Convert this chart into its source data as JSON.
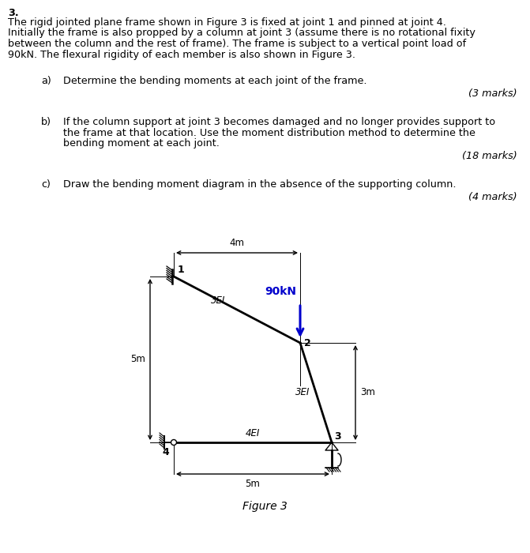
{
  "title_number": "3.",
  "paragraph1": "The rigid jointed plane frame shown in Figure 3 is fixed at joint 1 and pinned at joint 4.",
  "paragraph2": "Initially the frame is also propped by a column at joint 3 (assume there is no rotational fixity",
  "paragraph3": "between the column and the rest of frame). The frame is subject to a vertical point load of",
  "paragraph4": "90kN. The flexural rigidity of each member is also shown in Figure 3.",
  "qa_label": "a)",
  "qa_text": "Determine the bending moments at each joint of the frame.",
  "qa_marks": "(3 marks)",
  "qb_label": "b)",
  "qb_line1": "If the column support at joint 3 becomes damaged and no longer provides support to",
  "qb_line2": "the frame at that location. Use the moment distribution method to determine the",
  "qb_line3": "bending moment at each joint.",
  "qb_marks": "(18 marks)",
  "qc_label": "c)",
  "qc_text": "Draw the bending moment diagram in the absence of the supporting column.",
  "qc_marks": "(4 marks)",
  "figure_label": "Figure 3",
  "load_label": "90kN",
  "load_color": "#0000cc",
  "background_color": "#ffffff",
  "line_color": "#000000",
  "joint1": [
    0.0,
    5.0
  ],
  "joint2": [
    4.0,
    3.0
  ],
  "joint3": [
    5.0,
    0.0
  ],
  "joint4": [
    0.0,
    0.0
  ],
  "ei_12": "3EI",
  "ei_23": "3EI",
  "ei_43": "4EI",
  "dim_horiz": "4m",
  "dim_left": "5m",
  "dim_right": "3m",
  "dim_bot": "5m"
}
